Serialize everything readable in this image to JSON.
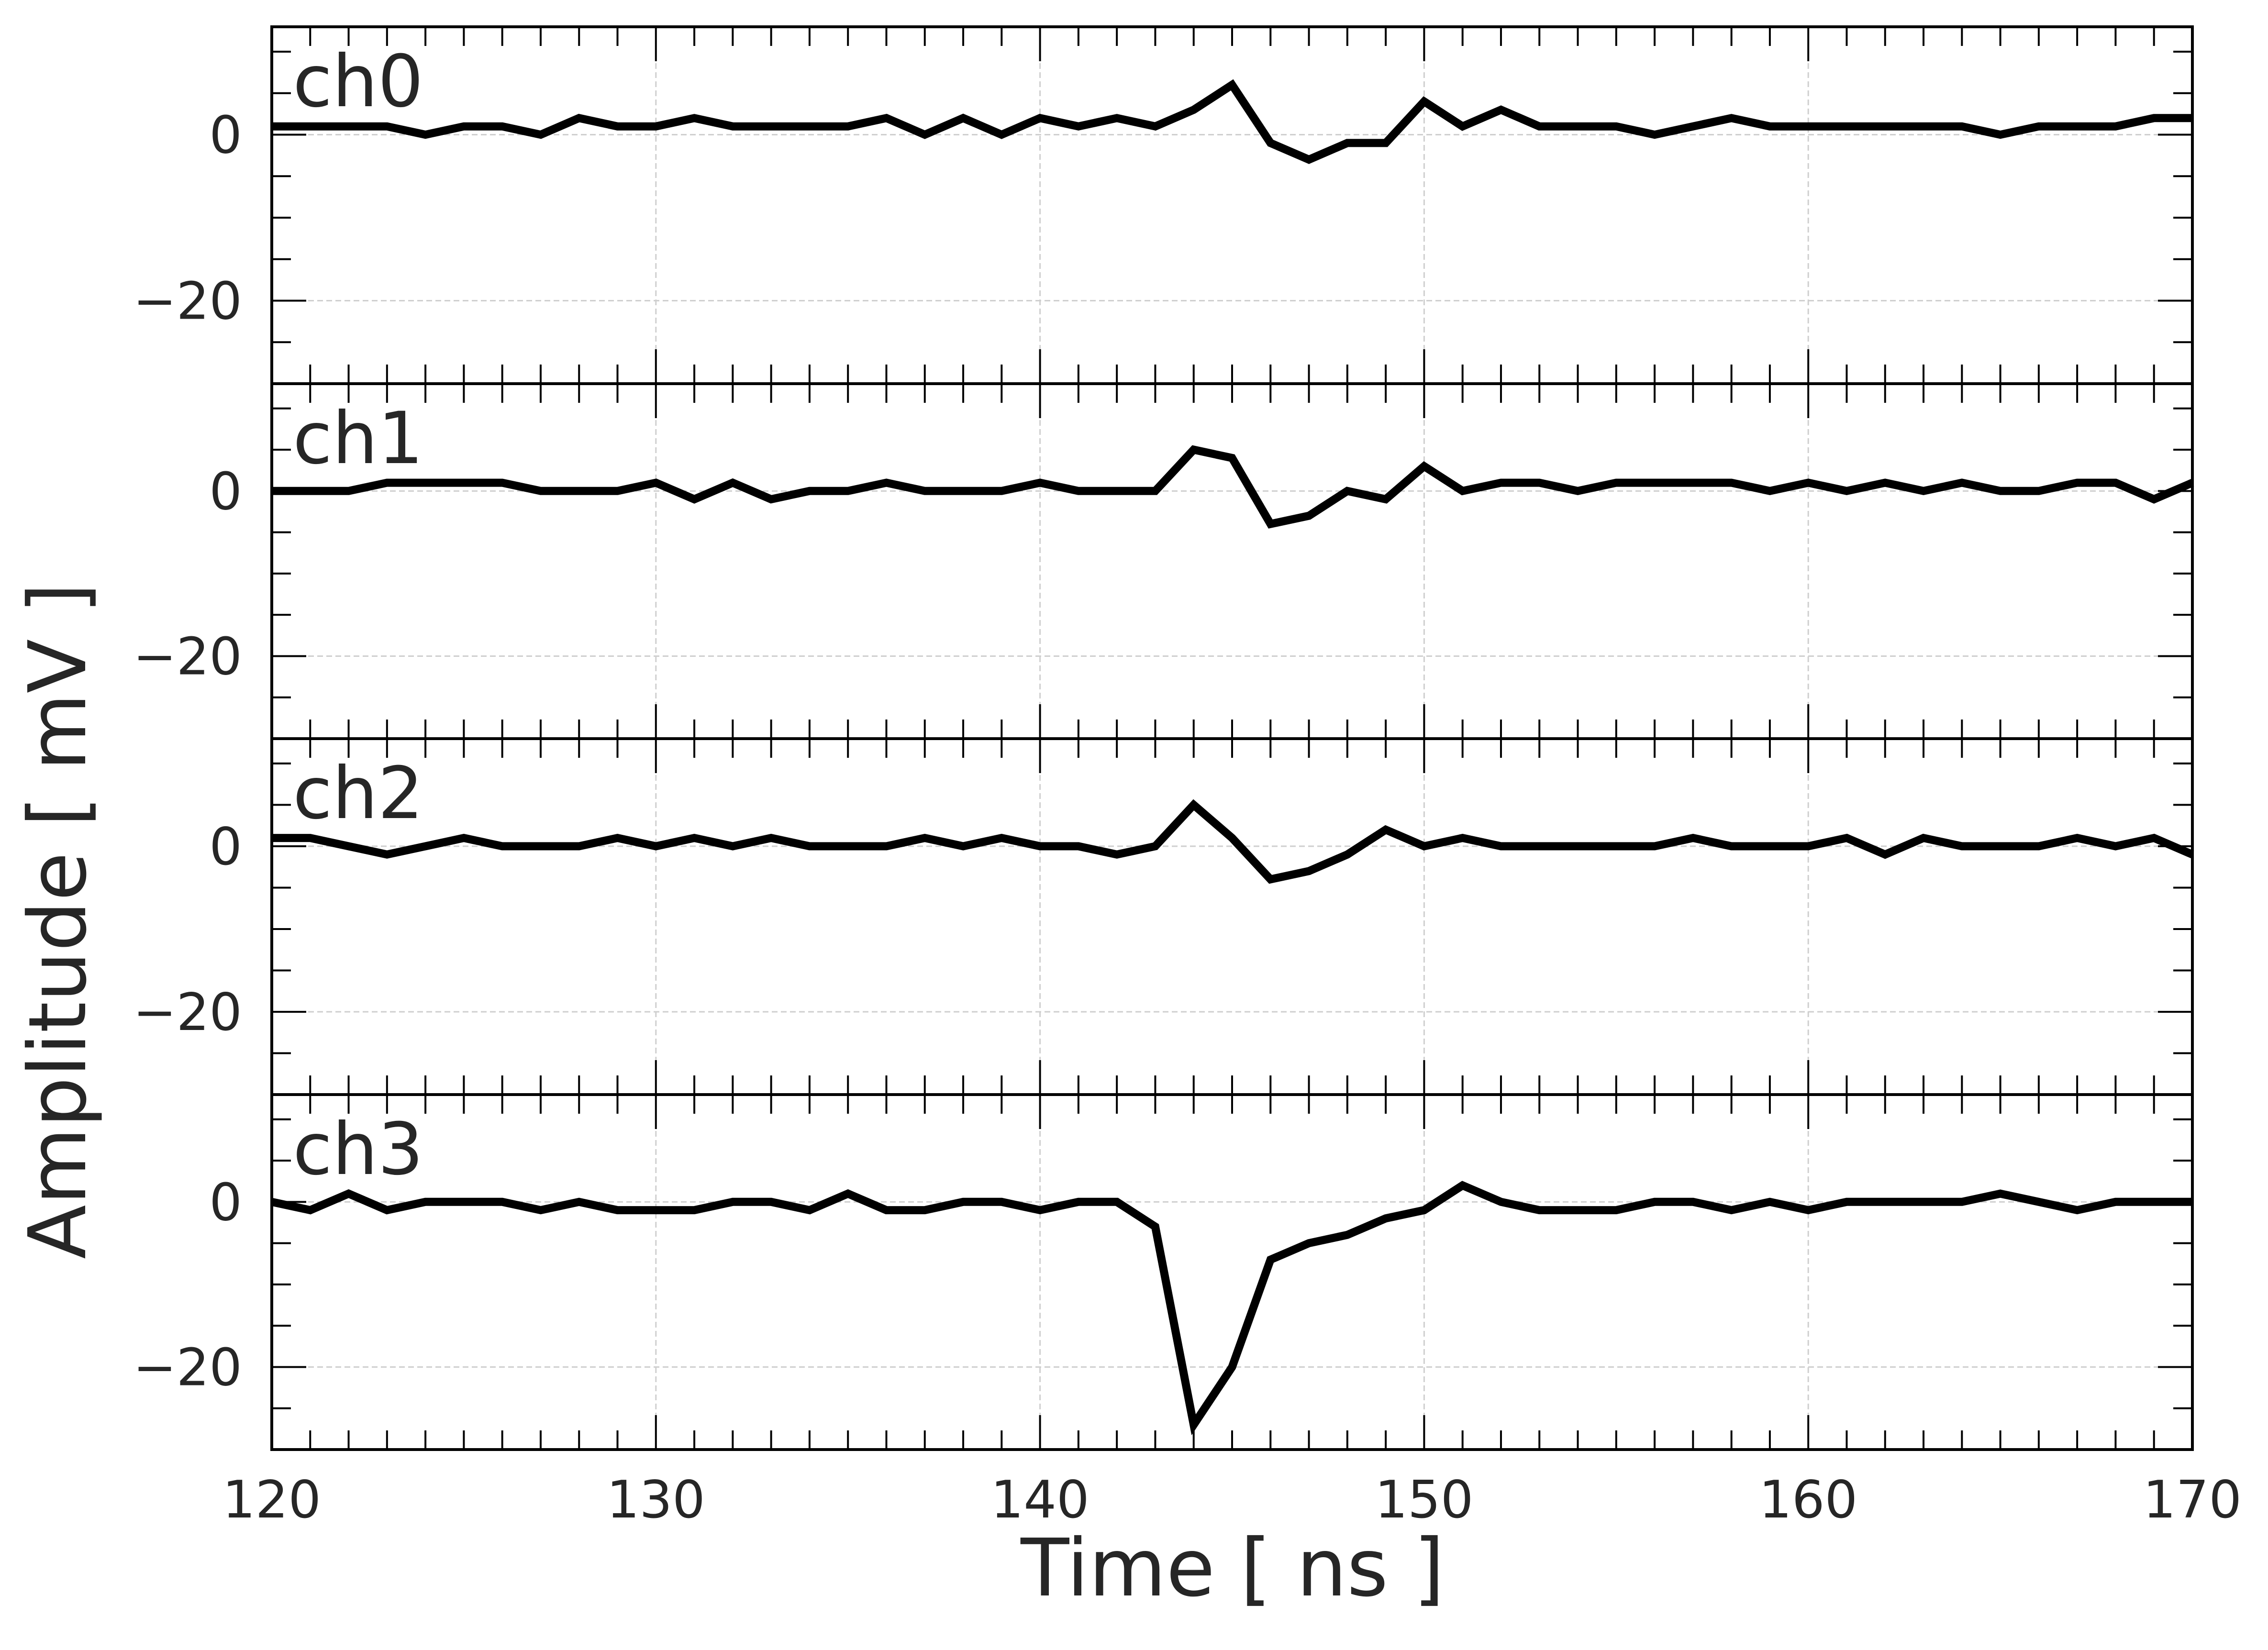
{
  "chart_data": {
    "type": "line",
    "xlabel": "Time [ ns ]",
    "ylabel": "Amplitude [ mV ]",
    "xlim": [
      120,
      170
    ],
    "ylim": [
      -30,
      13
    ],
    "x_ticks": [
      120,
      130,
      140,
      150,
      160,
      170
    ],
    "y_ticks": [
      -20,
      0
    ],
    "y_tick_labels": [
      "−20",
      "0"
    ],
    "grid": true,
    "line_color": "#000000",
    "x": [
      120,
      121,
      122,
      123,
      124,
      125,
      126,
      127,
      128,
      129,
      130,
      131,
      132,
      133,
      134,
      135,
      136,
      137,
      138,
      139,
      140,
      141,
      142,
      143,
      144,
      145,
      146,
      147,
      148,
      149,
      150,
      151,
      152,
      153,
      154,
      155,
      156,
      157,
      158,
      159,
      160,
      161,
      162,
      163,
      164,
      165,
      166,
      167,
      168,
      169,
      170
    ],
    "panels": [
      {
        "label": "ch0",
        "values": [
          1,
          1,
          1,
          1,
          0,
          1,
          1,
          0,
          2,
          1,
          1,
          2,
          1,
          1,
          1,
          1,
          2,
          0,
          2,
          0,
          2,
          1,
          2,
          1,
          3,
          6,
          -1,
          -3,
          -1,
          -1,
          4,
          1,
          3,
          1,
          1,
          1,
          0,
          1,
          2,
          1,
          1,
          1,
          1,
          1,
          1,
          0,
          1,
          1,
          1,
          2,
          2
        ]
      },
      {
        "label": "ch1",
        "values": [
          0,
          0,
          0,
          1,
          1,
          1,
          1,
          0,
          0,
          0,
          1,
          -1,
          1,
          -1,
          0,
          0,
          1,
          0,
          0,
          0,
          1,
          0,
          0,
          0,
          5,
          4,
          -4,
          -3,
          0,
          -1,
          3,
          0,
          1,
          1,
          0,
          1,
          1,
          1,
          1,
          0,
          1,
          0,
          1,
          0,
          1,
          0,
          0,
          1,
          1,
          -1,
          1
        ]
      },
      {
        "label": "ch2",
        "values": [
          1,
          1,
          0,
          -1,
          0,
          1,
          0,
          0,
          0,
          1,
          0,
          1,
          0,
          1,
          0,
          0,
          0,
          1,
          0,
          1,
          0,
          0,
          -1,
          0,
          5,
          1,
          -4,
          -3,
          -1,
          2,
          0,
          1,
          0,
          0,
          0,
          0,
          0,
          1,
          0,
          0,
          0,
          1,
          -1,
          1,
          0,
          0,
          0,
          1,
          0,
          1,
          -1
        ]
      },
      {
        "label": "ch3",
        "values": [
          0,
          -1,
          1,
          -1,
          0,
          0,
          0,
          -1,
          0,
          -1,
          -1,
          -1,
          0,
          0,
          -1,
          1,
          -1,
          -1,
          0,
          0,
          -1,
          0,
          0,
          -3,
          -27,
          -20,
          -7,
          -5,
          -4,
          -2,
          -1,
          2,
          0,
          -1,
          -1,
          -1,
          0,
          0,
          -1,
          0,
          -1,
          0,
          0,
          0,
          0,
          1,
          0,
          -1,
          0,
          0,
          0
        ]
      }
    ]
  }
}
